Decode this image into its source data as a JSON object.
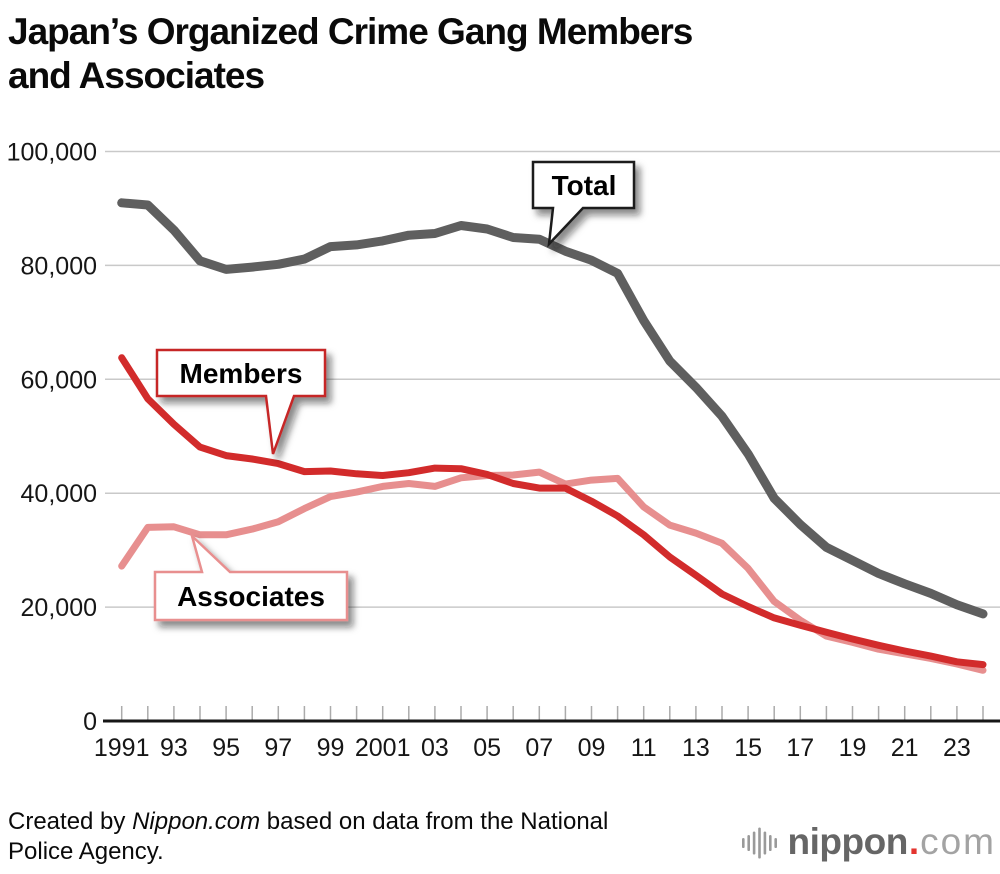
{
  "title": {
    "line1": "Japan’s Organized Crime Gang Members",
    "line2": "and Associates"
  },
  "chart_data": {
    "type": "line",
    "title": "Japan’s Organized Crime Gang Members and Associates",
    "xlabel": "",
    "ylabel": "",
    "ylim": [
      0,
      100000
    ],
    "grid": true,
    "x": [
      1991,
      1992,
      1993,
      1994,
      1995,
      1996,
      1997,
      1998,
      1999,
      2000,
      2001,
      2002,
      2003,
      2004,
      2005,
      2006,
      2007,
      2008,
      2009,
      2010,
      2011,
      2012,
      2013,
      2014,
      2015,
      2016,
      2017,
      2018,
      2019,
      2020,
      2021,
      2022,
      2023,
      2024
    ],
    "series": [
      {
        "name": "Total",
        "color": "#5f5f5f",
        "stroke_width": 9,
        "values": [
          91000,
          90600,
          86200,
          80800,
          79300,
          79700,
          80200,
          81100,
          83300,
          83600,
          84300,
          85300,
          85600,
          87000,
          86400,
          84900,
          84600,
          82500,
          80900,
          78600,
          70300,
          63200,
          58600,
          53500,
          46900,
          39100,
          34500,
          30500,
          28200,
          25900,
          24100,
          22400,
          20400,
          18800
        ]
      },
      {
        "name": "Associates",
        "color": "#e78f8f",
        "stroke_width": 7,
        "values": [
          27200,
          34000,
          34100,
          32700,
          32700,
          33700,
          35000,
          37300,
          39400,
          40200,
          41200,
          41700,
          41200,
          42700,
          43100,
          43200,
          43700,
          41600,
          42300,
          42600,
          37600,
          34400,
          33000,
          31200,
          26800,
          21000,
          17700,
          14900,
          13800,
          12600,
          11800,
          11000,
          10000,
          8900
        ]
      },
      {
        "name": "Members",
        "color": "#d22b2b",
        "stroke_width": 7,
        "values": [
          63800,
          56600,
          52100,
          48100,
          46600,
          46000,
          45200,
          43800,
          43900,
          43400,
          43100,
          43600,
          44400,
          44300,
          43300,
          41700,
          40900,
          40900,
          38600,
          36000,
          32700,
          28800,
          25600,
          22300,
          20100,
          18100,
          16800,
          15600,
          14400,
          13300,
          12300,
          11400,
          10400,
          9900
        ]
      }
    ],
    "yticks": [
      {
        "value": 100000,
        "label": "100,000"
      },
      {
        "value": 80000,
        "label": "80,000"
      },
      {
        "value": 60000,
        "label": "60,000"
      },
      {
        "value": 40000,
        "label": "40,000"
      },
      {
        "value": 20000,
        "label": "20,000"
      },
      {
        "value": 0,
        "label": "0"
      }
    ],
    "xticks": [
      {
        "year": 1991,
        "label": "1991"
      },
      {
        "year": 1993,
        "label": "93"
      },
      {
        "year": 1995,
        "label": "95"
      },
      {
        "year": 1997,
        "label": "97"
      },
      {
        "year": 1999,
        "label": "99"
      },
      {
        "year": 2001,
        "label": "2001"
      },
      {
        "year": 2003,
        "label": "03"
      },
      {
        "year": 2005,
        "label": "05"
      },
      {
        "year": 2007,
        "label": "07"
      },
      {
        "year": 2009,
        "label": "09"
      },
      {
        "year": 2011,
        "label": "11"
      },
      {
        "year": 2013,
        "label": "13"
      },
      {
        "year": 2015,
        "label": "15"
      },
      {
        "year": 2017,
        "label": "17"
      },
      {
        "year": 2019,
        "label": "19"
      },
      {
        "year": 2021,
        "label": "21"
      },
      {
        "year": 2023,
        "label": "23"
      }
    ],
    "annotations": [
      {
        "label": "Total",
        "series": "Total"
      },
      {
        "label": "Members",
        "series": "Members"
      },
      {
        "label": "Associates",
        "series": "Associates"
      }
    ]
  },
  "footer": {
    "line1_prefix": "Created by ",
    "line1_source": "Nippon.com",
    "line1_rest": " based on data from the National",
    "line2": "Police Agency.",
    "logo_bold": "nippon",
    "logo_dot": ".",
    "logo_light": "com",
    "logo_dot_color": "#e3342f"
  }
}
